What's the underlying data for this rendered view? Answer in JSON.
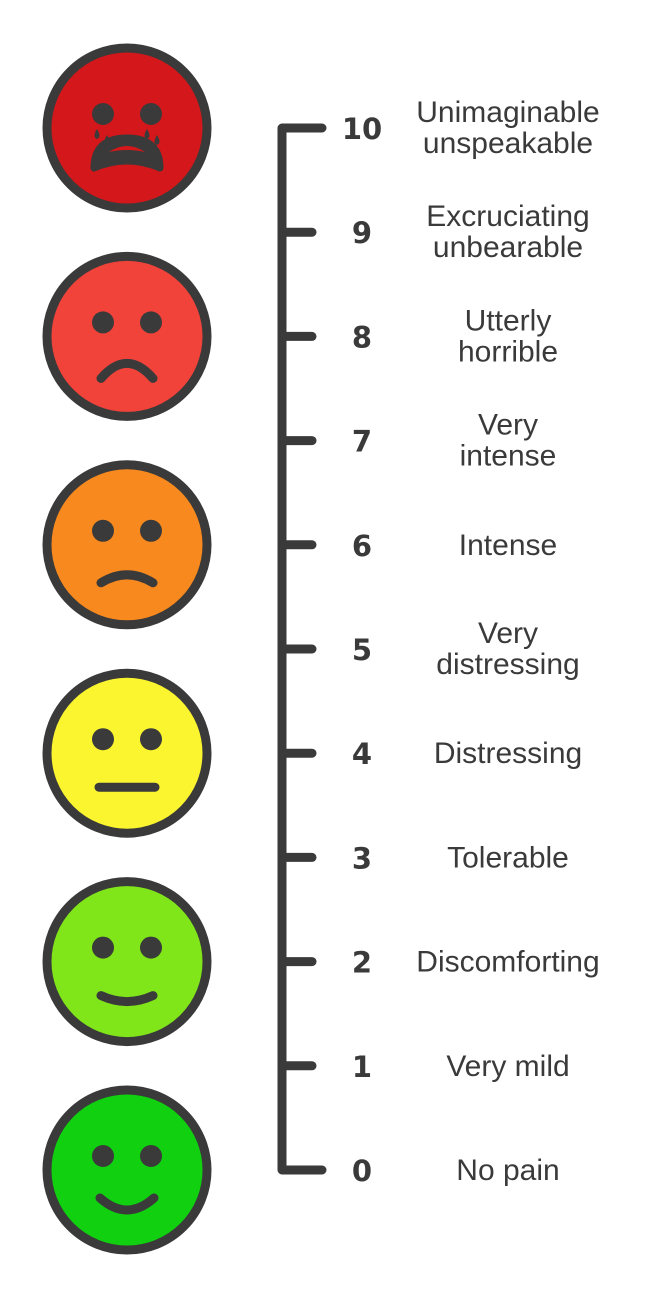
{
  "scale": {
    "levels": [
      {
        "value": "10",
        "lines": [
          "Unimaginable",
          "unspeakable"
        ]
      },
      {
        "value": "9",
        "lines": [
          "Excruciating",
          "unbearable"
        ]
      },
      {
        "value": "8",
        "lines": [
          "Utterly",
          "horrible"
        ]
      },
      {
        "value": "7",
        "lines": [
          "Very",
          "intense"
        ]
      },
      {
        "value": "6",
        "lines": [
          "Intense"
        ]
      },
      {
        "value": "5",
        "lines": [
          "Very",
          "distressing"
        ]
      },
      {
        "value": "4",
        "lines": [
          "Distressing"
        ]
      },
      {
        "value": "3",
        "lines": [
          "Tolerable"
        ]
      },
      {
        "value": "2",
        "lines": [
          "Discomforting"
        ]
      },
      {
        "value": "1",
        "lines": [
          "Very mild"
        ]
      },
      {
        "value": "0",
        "lines": [
          "No pain"
        ]
      }
    ]
  },
  "faces": [
    {
      "expression": "crying",
      "color": "#d4171a"
    },
    {
      "expression": "very-sad",
      "color": "#f1433a"
    },
    {
      "expression": "sad",
      "color": "#f7891f"
    },
    {
      "expression": "neutral",
      "color": "#fbf530"
    },
    {
      "expression": "slight-smile",
      "color": "#80e61a"
    },
    {
      "expression": "smile",
      "color": "#10d010"
    }
  ],
  "outline_color": "#3a3a3a"
}
